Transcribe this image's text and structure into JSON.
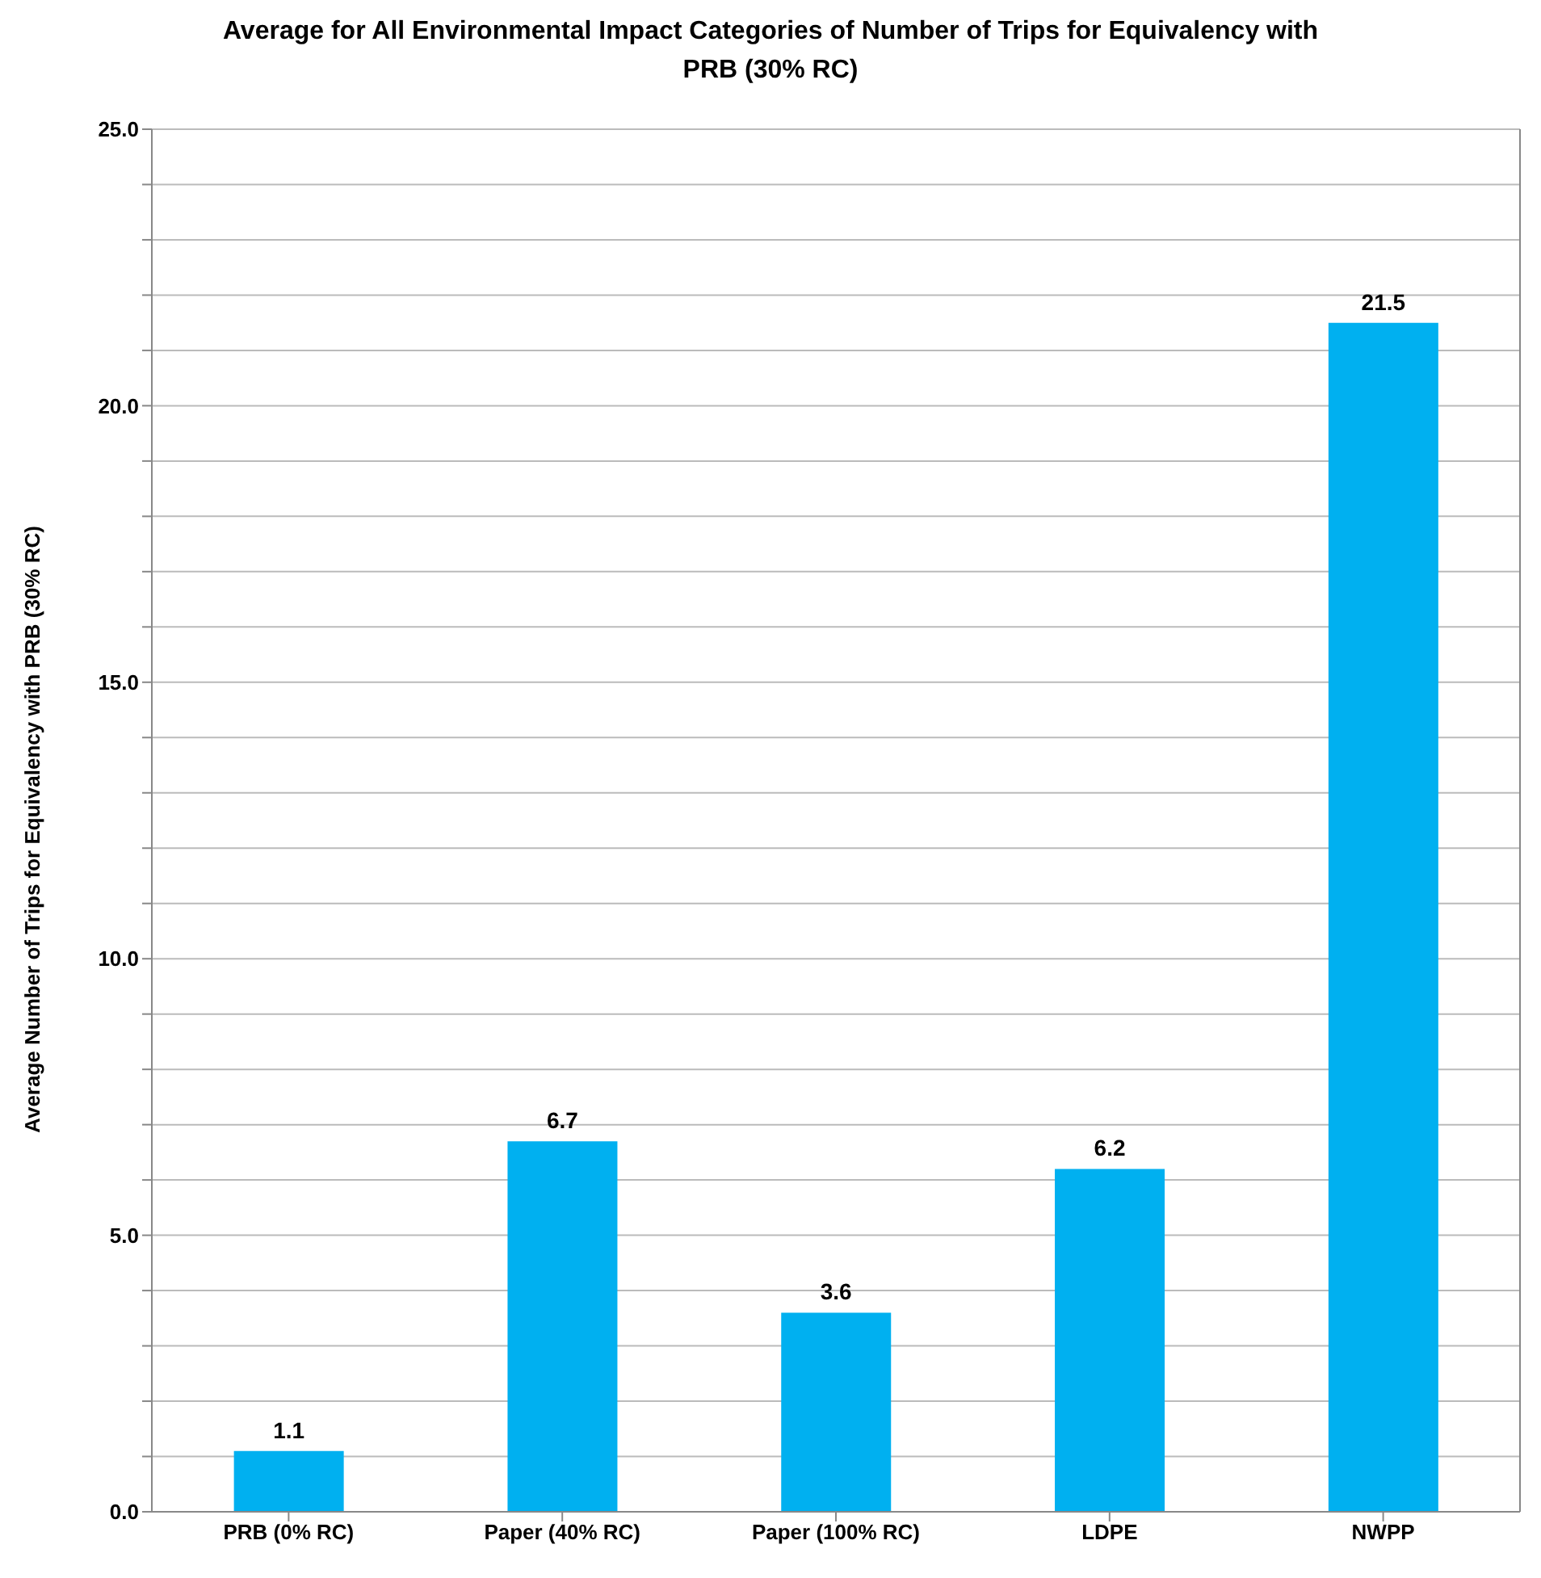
{
  "chart_data": {
    "type": "bar",
    "title": "Average for All Environmental Impact Categories of Number of Trips for Equivalency with PRB (30% RC)",
    "ylabel": "Average Number of Trips for Equivalency with PRB (30% RC)",
    "categories": [
      "PRB (0% RC)",
      "Paper (40% RC)",
      "Paper (100% RC)",
      "LDPE",
      "NWPP"
    ],
    "values": [
      1.1,
      6.7,
      3.6,
      6.2,
      21.5
    ],
    "color": "#00b0f0",
    "data_labels": true,
    "grid": "y",
    "legend": false,
    "ylim": [
      0,
      25
    ],
    "yticks": [
      {
        "value": 0,
        "label": "0.0"
      },
      {
        "value": 1,
        "label": null
      },
      {
        "value": 2,
        "label": null
      },
      {
        "value": 3,
        "label": null
      },
      {
        "value": 4,
        "label": null
      },
      {
        "value": 5,
        "label": "5.0"
      },
      {
        "value": 6,
        "label": null
      },
      {
        "value": 7,
        "label": null
      },
      {
        "value": 8,
        "label": null
      },
      {
        "value": 9,
        "label": null
      },
      {
        "value": 10,
        "label": "10.0"
      },
      {
        "value": 11,
        "label": null
      },
      {
        "value": 12,
        "label": null
      },
      {
        "value": 13,
        "label": null
      },
      {
        "value": 14,
        "label": null
      },
      {
        "value": 15,
        "label": "15.0"
      },
      {
        "value": 16,
        "label": null
      },
      {
        "value": 17,
        "label": null
      },
      {
        "value": 18,
        "label": null
      },
      {
        "value": 19,
        "label": null
      },
      {
        "value": 20,
        "label": "20.0"
      },
      {
        "value": 21,
        "label": null
      },
      {
        "value": 22,
        "label": null
      },
      {
        "value": 23,
        "label": null
      },
      {
        "value": 24,
        "label": null
      },
      {
        "value": 25,
        "label": "25.0"
      }
    ]
  }
}
